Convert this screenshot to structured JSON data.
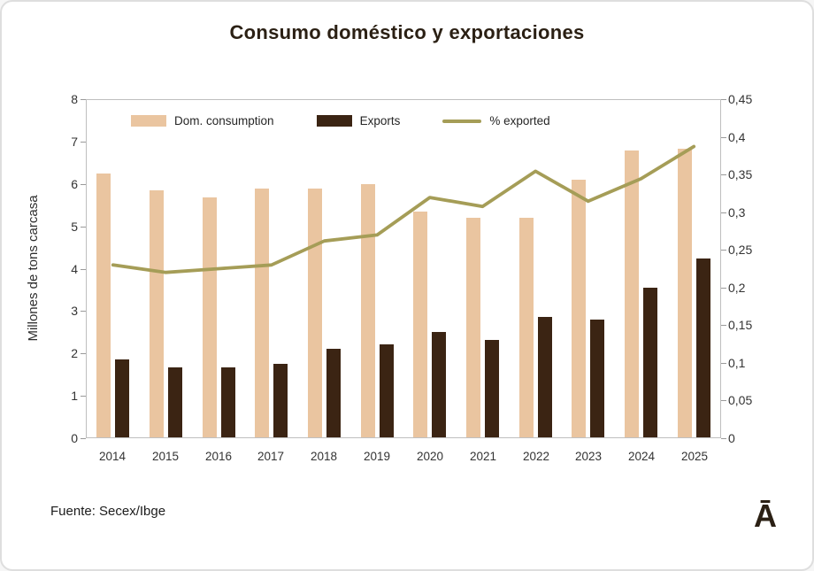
{
  "title": "Consumo doméstico y exportaciones",
  "ylabel_left": "Millones de tons carcasa",
  "source": "Fuente: Secex/Ibge",
  "watermark": "Ā",
  "colors": {
    "dom_consumption": "#eac5a0",
    "exports": "#3b2413",
    "pct_exported": "#a59d57",
    "title_text": "#2b2014",
    "axis_text": "#333333",
    "plot_border": "#bfbfbf"
  },
  "legend": [
    {
      "label": "Dom. consumption",
      "type": "bar",
      "color": "#eac5a0"
    },
    {
      "label": "Exports",
      "type": "bar",
      "color": "#3b2413"
    },
    {
      "label": "% exported",
      "type": "line",
      "color": "#a59d57"
    }
  ],
  "chart_data": {
    "type": "bar",
    "subtype": "bars-with-line-overlay",
    "title": "Consumo doméstico y exportaciones",
    "xlabel": "",
    "ylabel_left": "Millones de tons carcasa",
    "categories": [
      "2014",
      "2015",
      "2016",
      "2017",
      "2018",
      "2019",
      "2020",
      "2021",
      "2022",
      "2023",
      "2024",
      "2025"
    ],
    "series": [
      {
        "name": "Dom. consumption",
        "type": "bar",
        "axis": "left",
        "color": "#eac5a0",
        "values": [
          6.25,
          5.85,
          5.7,
          5.9,
          5.9,
          6.0,
          5.35,
          5.2,
          5.2,
          6.1,
          6.8,
          6.85
        ]
      },
      {
        "name": "Exports",
        "type": "bar",
        "axis": "left",
        "color": "#3b2413",
        "values": [
          1.85,
          1.65,
          1.65,
          1.75,
          2.1,
          2.2,
          2.5,
          2.3,
          2.85,
          2.8,
          3.55,
          4.25
        ]
      },
      {
        "name": "% exported",
        "type": "line",
        "axis": "right",
        "color": "#a59d57",
        "values": [
          0.23,
          0.22,
          0.225,
          0.23,
          0.262,
          0.27,
          0.32,
          0.308,
          0.355,
          0.315,
          0.345,
          0.388
        ]
      }
    ],
    "left_axis": {
      "min": 0,
      "max": 8,
      "ticks": [
        "0",
        "1",
        "2",
        "3",
        "4",
        "5",
        "6",
        "7",
        "8"
      ]
    },
    "right_axis": {
      "min": 0,
      "max": 0.45,
      "ticks": [
        "0",
        "0,05",
        "0,1",
        "0,15",
        "0,2",
        "0,25",
        "0,3",
        "0,35",
        "0,4",
        "0,45"
      ]
    },
    "grid": false,
    "legend_position": "top-inside"
  }
}
